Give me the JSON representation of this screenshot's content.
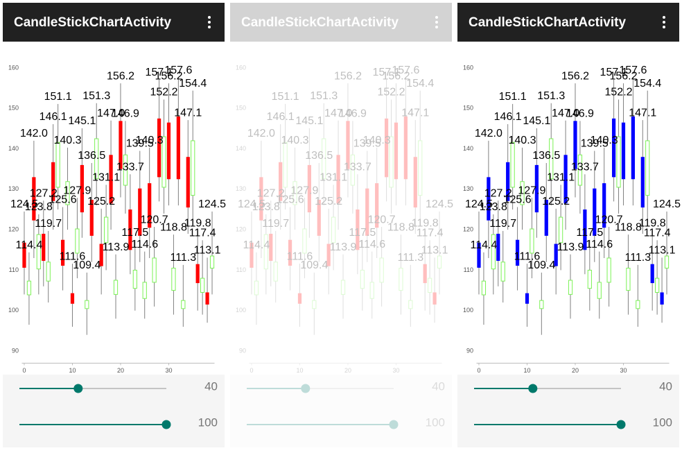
{
  "panels": [
    {
      "title": "CandleStickChartActivity",
      "toolbar_color": "#212121",
      "decreasing_color": "#ff0000",
      "enabled": true
    },
    {
      "title": "CandleStickChartActivity",
      "toolbar_color": "#d3d3d3",
      "decreasing_color": "#ff0000",
      "enabled": false
    },
    {
      "title": "CandleStickChartActivity",
      "toolbar_color": "#212121",
      "decreasing_color": "#0000ff",
      "enabled": true
    }
  ],
  "chart_data": {
    "type": "candlestick",
    "x": [
      0,
      1,
      2,
      3,
      4,
      5,
      6,
      7,
      8,
      9,
      10,
      11,
      12,
      13,
      14,
      15,
      16,
      17,
      18,
      19,
      20,
      21,
      22,
      23,
      24,
      25,
      26,
      27,
      28,
      29,
      30,
      31,
      32,
      33,
      34,
      35,
      36,
      37,
      38,
      39
    ],
    "open": [
      116.8,
      103.9,
      133,
      110.3,
      119,
      107.3,
      136.7,
      130.5,
      117.5,
      126.2,
      104.3,
      114.2,
      136,
      100.5,
      127.4,
      132.6,
      116.5,
      116.8,
      138.5,
      104,
      146.9,
      131,
      125,
      105.5,
      130.2,
      103,
      131.5,
      107,
      147.5,
      130.5,
      146.5,
      105,
      148,
      100.5,
      138,
      128.5,
      111.5,
      104.5,
      104.5,
      110.5
    ],
    "close": [
      110.6,
      107.3,
      122.3,
      118.8,
      112.3,
      112,
      127.1,
      141.6,
      111.1,
      131.9,
      101.7,
      120.2,
      124.3,
      102.5,
      118.5,
      142.5,
      111,
      123.1,
      126.5,
      107.5,
      135,
      138.5,
      115,
      110,
      118.5,
      107,
      120.5,
      113,
      133,
      143,
      132.5,
      110.5,
      132.5,
      102.5,
      125.5,
      142,
      106.8,
      108,
      101.5,
      113.5
    ],
    "high": [
      124.5,
      114.4,
      142,
      123.8,
      127.2,
      119.7,
      146.1,
      151.1,
      125.6,
      140.3,
      111.6,
      127.9,
      145.1,
      109.4,
      136.5,
      151.3,
      125.2,
      131.1,
      147,
      113.9,
      156.2,
      146.9,
      133.7,
      117.5,
      139.5,
      114.6,
      140.3,
      120.7,
      157.1,
      152.2,
      156.2,
      118.8,
      157.6,
      111.3,
      147.1,
      154.4,
      119.8,
      117.4,
      113.1,
      124.5
    ],
    "low": [
      104,
      96.5,
      113,
      104,
      106,
      102,
      120,
      125,
      105,
      120,
      96,
      108,
      118,
      94,
      112,
      126,
      104,
      110,
      120,
      98,
      128,
      124,
      109,
      100,
      112,
      98,
      113,
      101,
      127,
      124,
      126,
      99,
      126,
      96,
      119,
      122,
      100,
      99,
      97,
      104
    ],
    "value_labels": [
      "124.5",
      "114.4",
      "142.0",
      "123.8",
      "127.2",
      "119.7",
      "146.1",
      "151.1",
      "125.6",
      "140.3",
      "111.6",
      "127.9",
      "145.1",
      "109.4",
      "136.5",
      "151.3",
      "125.2",
      "131.1",
      "147.0",
      "113.9",
      "156.2",
      "146.9",
      "133.7",
      "117.5",
      "139.5",
      "114.6",
      "140.3",
      "120.7",
      "157.1",
      "152.2",
      "156.2",
      "118.8",
      "157.6",
      "111.3",
      "147.1",
      "154.4",
      "119.8",
      "117.4",
      "113.1",
      "124.5"
    ],
    "increasing_color": "#7af254",
    "shadow_color": "#808080",
    "xlim": [
      -0.5,
      39.5
    ],
    "xticks": [
      0,
      10,
      20,
      30
    ],
    "ylim": [
      87,
      163
    ],
    "yticks": [
      90,
      100,
      110,
      120,
      130,
      140,
      150,
      160
    ]
  },
  "sliders": [
    {
      "value": 40,
      "range": [
        0,
        100
      ]
    },
    {
      "value": 100,
      "range": [
        0,
        100
      ]
    }
  ]
}
